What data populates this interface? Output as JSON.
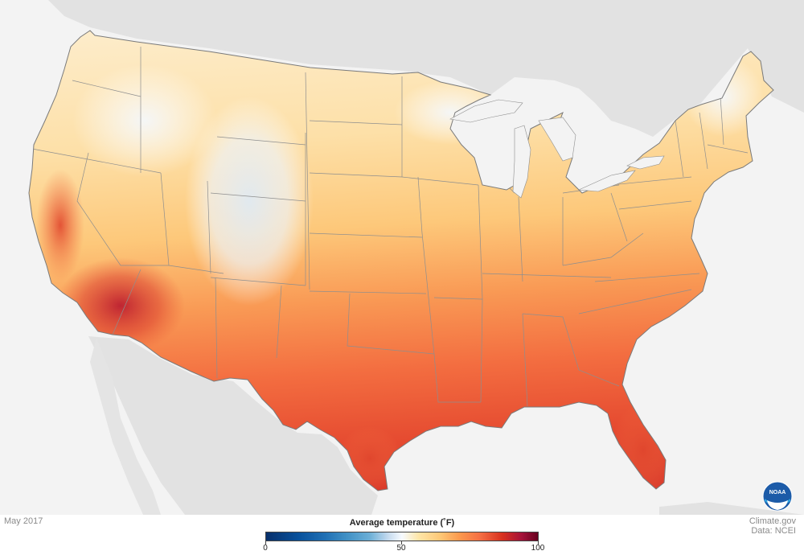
{
  "date": "May 2017",
  "legend": {
    "title": "Average temperature (˚F)",
    "ticks": [
      "0",
      "50",
      "100"
    ],
    "min": 0,
    "max": 100
  },
  "credits": {
    "site": "Climate.gov",
    "source": "Data: NCEI"
  },
  "logo": {
    "text": "NOAA"
  },
  "colors": {
    "land_background": "#e2e2e2",
    "water_background": "#f3f3f3",
    "cold": "#4292c6",
    "neutral": "#f7fbff",
    "warm": "#fdc877",
    "hot": "#f46d43",
    "hottest": "#a5123a"
  }
}
